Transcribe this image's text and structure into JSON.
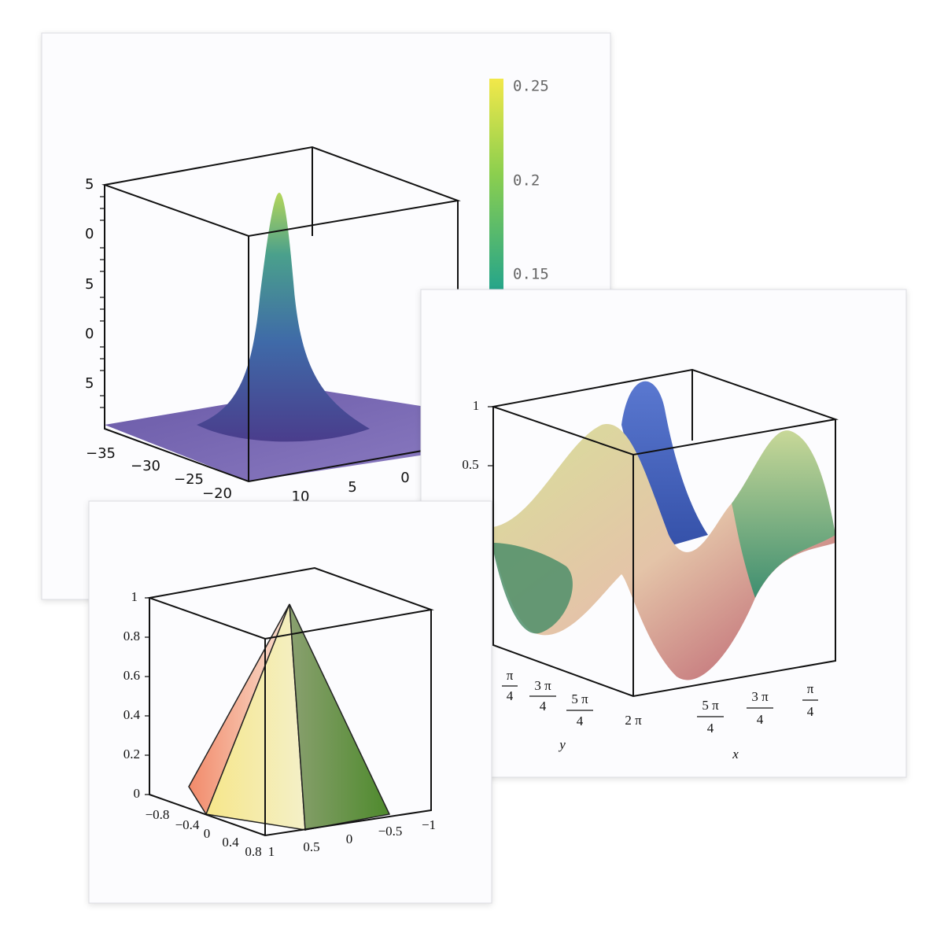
{
  "panels": [
    {
      "colorbar_ticks": [
        "0.25",
        "0.2",
        "0.15"
      ],
      "z_ticks": [
        "5",
        "0",
        "5",
        "0",
        "5"
      ],
      "x_ticks": [
        "−35",
        "−30",
        "−25",
        "−20"
      ],
      "y_ticks": [
        "10",
        "5",
        "0"
      ]
    },
    {
      "z_ticks": [
        "1",
        "0.5"
      ],
      "y_ticks": [
        {
          "num": "π",
          "den": "4"
        },
        {
          "num": "3 π",
          "den": "4"
        },
        {
          "num": "5 π",
          "den": "4"
        },
        "2 π"
      ],
      "x_ticks": [
        {
          "num": "5 π",
          "den": "4"
        },
        {
          "num": "3 π",
          "den": "4"
        },
        {
          "num": "π",
          "den": "4"
        }
      ],
      "y_label": "y",
      "x_label": "x"
    },
    {
      "z_ticks": [
        "1",
        "0.8",
        "0.6",
        "0.4",
        "0.2",
        "0"
      ],
      "x_ticks": [
        "−0.8",
        "−0.4",
        "0",
        "0.4",
        "0.8"
      ],
      "y_ticks": [
        "1",
        "0.5",
        "0",
        "−0.5",
        "−1"
      ]
    }
  ]
}
